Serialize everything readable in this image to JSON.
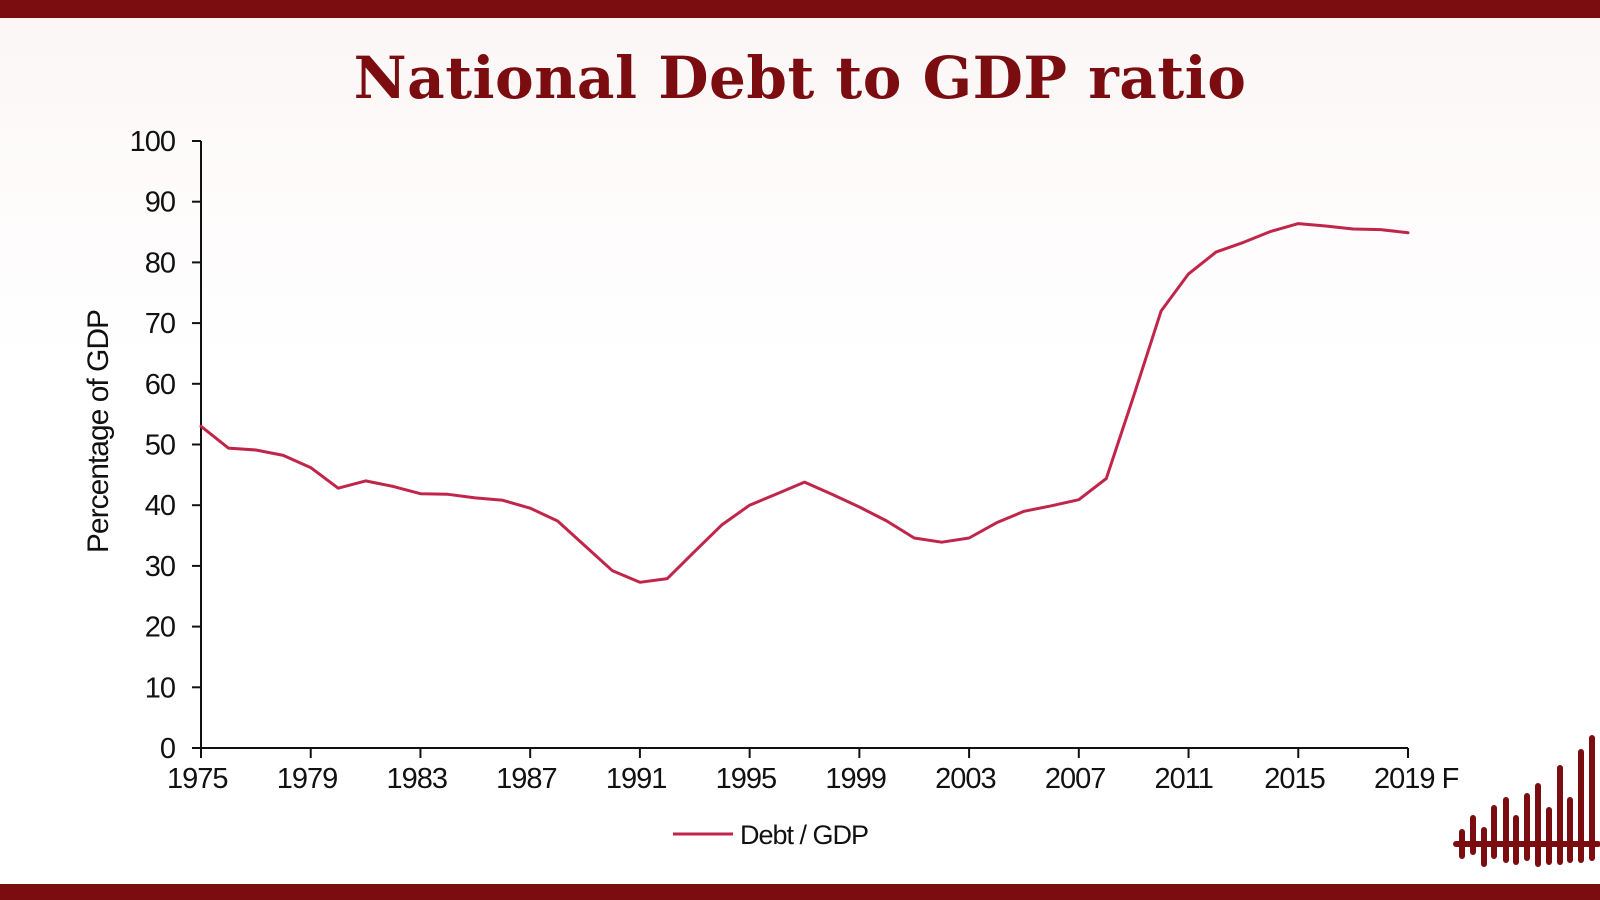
{
  "page": {
    "title": "National Debt to GDP ratio",
    "brand_color": "#7b0c10",
    "logo_icon": "bars-logo-icon"
  },
  "chart_data": {
    "type": "line",
    "title": "National Debt to GDP ratio",
    "xlabel": "",
    "ylabel": "Percentage of GDP",
    "ylim": [
      0,
      100
    ],
    "yticks": [
      0,
      10,
      20,
      30,
      40,
      50,
      60,
      70,
      80,
      90,
      100
    ],
    "xlim": [
      1975,
      2019
    ],
    "xticks": [
      {
        "value": 1975,
        "label": "1975"
      },
      {
        "value": 1979,
        "label": "1979"
      },
      {
        "value": 1983,
        "label": "1983"
      },
      {
        "value": 1987,
        "label": "1987"
      },
      {
        "value": 1991,
        "label": "1991"
      },
      {
        "value": 1995,
        "label": "1995"
      },
      {
        "value": 1999,
        "label": "1999"
      },
      {
        "value": 2003,
        "label": "2003"
      },
      {
        "value": 2007,
        "label": "2007"
      },
      {
        "value": 2011,
        "label": "2011"
      },
      {
        "value": 2015,
        "label": "2015"
      },
      {
        "value": 2019,
        "label": "2019 F"
      }
    ],
    "grid": false,
    "legend_position": "bottom",
    "series": [
      {
        "name": "Debt / GDP",
        "color": "#c0254a",
        "x": [
          1975,
          1976,
          1977,
          1978,
          1979,
          1980,
          1981,
          1982,
          1983,
          1984,
          1985,
          1986,
          1987,
          1988,
          1989,
          1990,
          1991,
          1992,
          1993,
          1994,
          1995,
          1996,
          1997,
          1998,
          1999,
          2000,
          2001,
          2002,
          2003,
          2004,
          2005,
          2006,
          2007,
          2008,
          2009,
          2010,
          2011,
          2012,
          2013,
          2014,
          2015,
          2016,
          2017,
          2018,
          2019
        ],
        "values": [
          53,
          49.4,
          49.1,
          48.2,
          46.2,
          42.8,
          44.0,
          43.1,
          41.9,
          41.8,
          41.2,
          40.8,
          39.5,
          37.4,
          33.3,
          29.2,
          27.3,
          27.9,
          32.4,
          36.8,
          40.0,
          41.9,
          43.8,
          41.8,
          39.7,
          37.4,
          34.6,
          33.9,
          34.6,
          37.1,
          39.0,
          39.9,
          40.9,
          44.4,
          58.0,
          72.0,
          78.1,
          81.7,
          83.3,
          85.1,
          86.4,
          86.0,
          85.5,
          85.4,
          84.9
        ]
      }
    ]
  }
}
